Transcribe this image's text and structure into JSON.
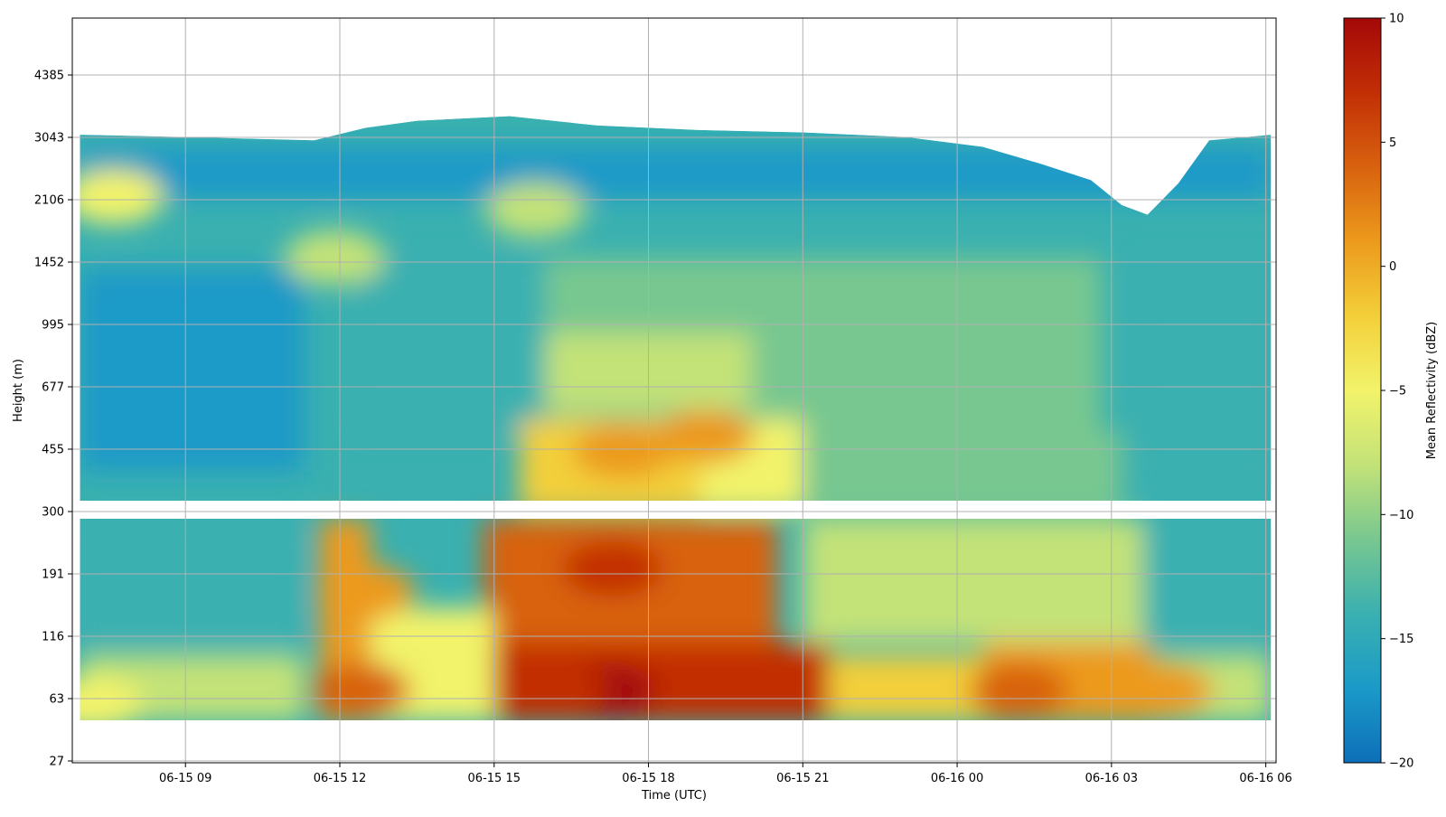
{
  "chart_data": {
    "type": "heatmap",
    "title": "",
    "xlabel": "Time (UTC)",
    "ylabel": "Height (m)",
    "colorbar_label": "Mean Reflectivity (dBZ)",
    "x_range": [
      "06-15 06:48",
      "06-16 06:12"
    ],
    "y_ticks": [
      27,
      63,
      116,
      191,
      300,
      455,
      677,
      995,
      1452,
      2106,
      3043,
      4385
    ],
    "x_ticks": [
      "06-15 09",
      "06-15 12",
      "06-15 15",
      "06-15 18",
      "06-15 21",
      "06-16 00",
      "06-16 03",
      "06-16 06"
    ],
    "x_tick_hours": [
      9,
      12,
      15,
      18,
      21,
      24,
      27,
      30
    ],
    "color_range": [
      -20,
      10
    ],
    "colorbar_ticks": [
      10,
      5,
      0,
      -5,
      -10,
      -15,
      -20
    ],
    "colormap": [
      "#0d6fb8",
      "#1b9ac8",
      "#3ab0b0",
      "#78c790",
      "#c3e278",
      "#f2f36a",
      "#f3cf3a",
      "#ec9a1c",
      "#d8620f",
      "#c22f06",
      "#a50808"
    ],
    "grid": true,
    "data_gap_heights_m": [
      220,
      300
    ],
    "echo_top_m": {
      "times_h": [
        7.0,
        9.0,
        11.5,
        12.5,
        13.5,
        15.3,
        17.0,
        19.0,
        21.0,
        23.0,
        24.5,
        25.6,
        26.6,
        27.2,
        27.7,
        28.3,
        28.9,
        30.2
      ],
      "heights": [
        3100,
        3050,
        3000,
        3250,
        3400,
        3500,
        3300,
        3200,
        3150,
        3050,
        2900,
        2650,
        2400,
        2050,
        1950,
        2350,
        3000,
        3100
      ]
    },
    "features": [
      {
        "time_h": 17.2,
        "height_m": 70,
        "dbz": 9
      },
      {
        "time_h": 16.2,
        "height_m": 70,
        "dbz": 7
      },
      {
        "time_h": 17.3,
        "height_m": 200,
        "dbz": 6
      },
      {
        "time_h": 12.4,
        "height_m": 70,
        "dbz": 5
      },
      {
        "time_h": 12.5,
        "height_m": 170,
        "dbz": 2
      },
      {
        "time_h": 25.2,
        "height_m": 70,
        "dbz": 4
      },
      {
        "time_h": 28.0,
        "height_m": 70,
        "dbz": 2
      },
      {
        "time_h": 17.5,
        "height_m": 450,
        "dbz": 1
      },
      {
        "time_h": 19.1,
        "height_m": 500,
        "dbz": 0
      },
      {
        "time_h": 7.2,
        "height_m": 60,
        "dbz": -4
      },
      {
        "time_h": 7.6,
        "height_m": 2150,
        "dbz": -4
      },
      {
        "time_h": 15.8,
        "height_m": 2000,
        "dbz": -7
      },
      {
        "time_h": 11.9,
        "height_m": 1500,
        "dbz": -8
      }
    ]
  }
}
